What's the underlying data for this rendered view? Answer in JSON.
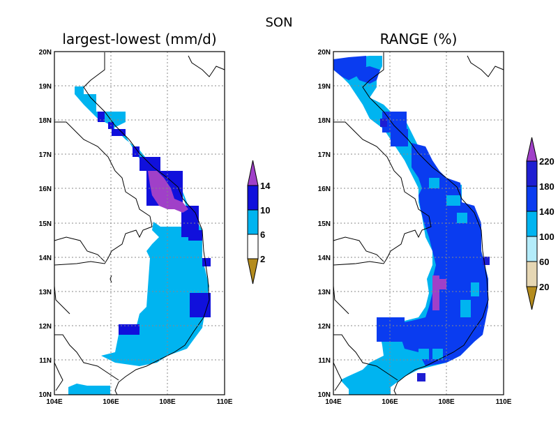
{
  "figure": {
    "season": "SON",
    "panels": [
      {
        "title": "largest-lowest (mm/d)",
        "colorbar": {
          "labels": [
            "14",
            "10",
            "6",
            "2"
          ],
          "boxes": [
            "#1010dc",
            "#00b4f0",
            "#ffffff"
          ],
          "over": "#a040c8",
          "under": "#b48c1e"
        }
      },
      {
        "title": "RANGE (%)",
        "colorbar": {
          "labels": [
            "220",
            "180",
            "140",
            "100",
            "60",
            "20"
          ],
          "boxes": [
            "#1e1ed2",
            "#0a3cf0",
            "#00b4f0",
            "#b4ecfa",
            "#e6d7b4"
          ],
          "over": "#a040c8",
          "under": "#b48c1e"
        }
      }
    ],
    "axes": {
      "x_ticks": [
        "104E",
        "106E",
        "108E",
        "110E"
      ],
      "y_ticks": [
        "10N",
        "11N",
        "12N",
        "13N",
        "14N",
        "15N",
        "16N",
        "17N",
        "18N",
        "19N",
        "20N"
      ],
      "lon_range": [
        104,
        110
      ],
      "lat_range": [
        10,
        20
      ]
    },
    "colors": {
      "purple": "#a040c8",
      "blue_dark": "#1010dc",
      "blue": "#0a3cf0",
      "cyan": "#00b4f0",
      "brown": "#b48c1e"
    }
  }
}
